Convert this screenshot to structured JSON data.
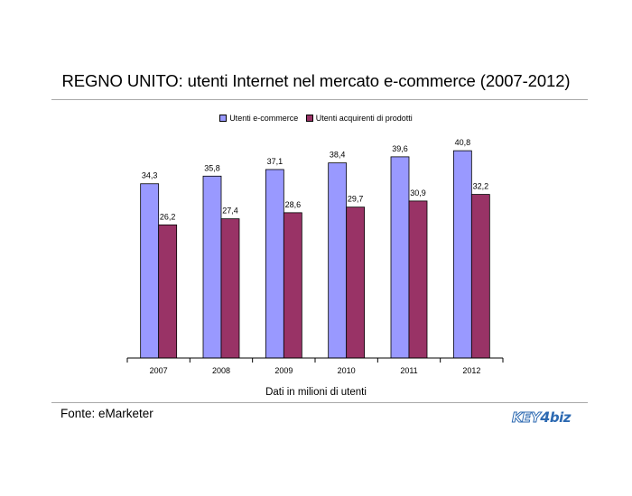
{
  "title": "REGNO UNITO: utenti Internet nel mercato e-commerce (2007-2012)",
  "footnote": "Dati in milioni di utenti",
  "source": "Fonte: eMarketer",
  "logo": {
    "part1": "KEY",
    "part2": "4",
    "part3": "biz"
  },
  "colors": {
    "series1": "#9999ff",
    "series2": "#993366",
    "logo": "#2d6ab2"
  },
  "chart_data": {
    "type": "bar",
    "title": "REGNO UNITO: utenti Internet nel mercato e-commerce (2007-2012)",
    "xlabel": "",
    "ylabel": "",
    "note": "Dati in milioni di utenti",
    "categories": [
      "2007",
      "2008",
      "2009",
      "2010",
      "2011",
      "2012"
    ],
    "series": [
      {
        "name": "Utenti e-commerce",
        "values": [
          34.3,
          35.8,
          37.1,
          38.4,
          39.6,
          40.8
        ],
        "labels": [
          "34,3",
          "35,8",
          "37,1",
          "38,4",
          "39,6",
          "40,8"
        ]
      },
      {
        "name": "Utenti acquirenti di prodotti",
        "values": [
          26.2,
          27.4,
          28.6,
          29.7,
          30.9,
          32.2
        ],
        "labels": [
          "26,2",
          "27,4",
          "28,6",
          "29,7",
          "30,9",
          "32,2"
        ]
      }
    ],
    "ylim": [
      0,
      41
    ],
    "legend": "top",
    "grid": false,
    "data_labels": true
  }
}
